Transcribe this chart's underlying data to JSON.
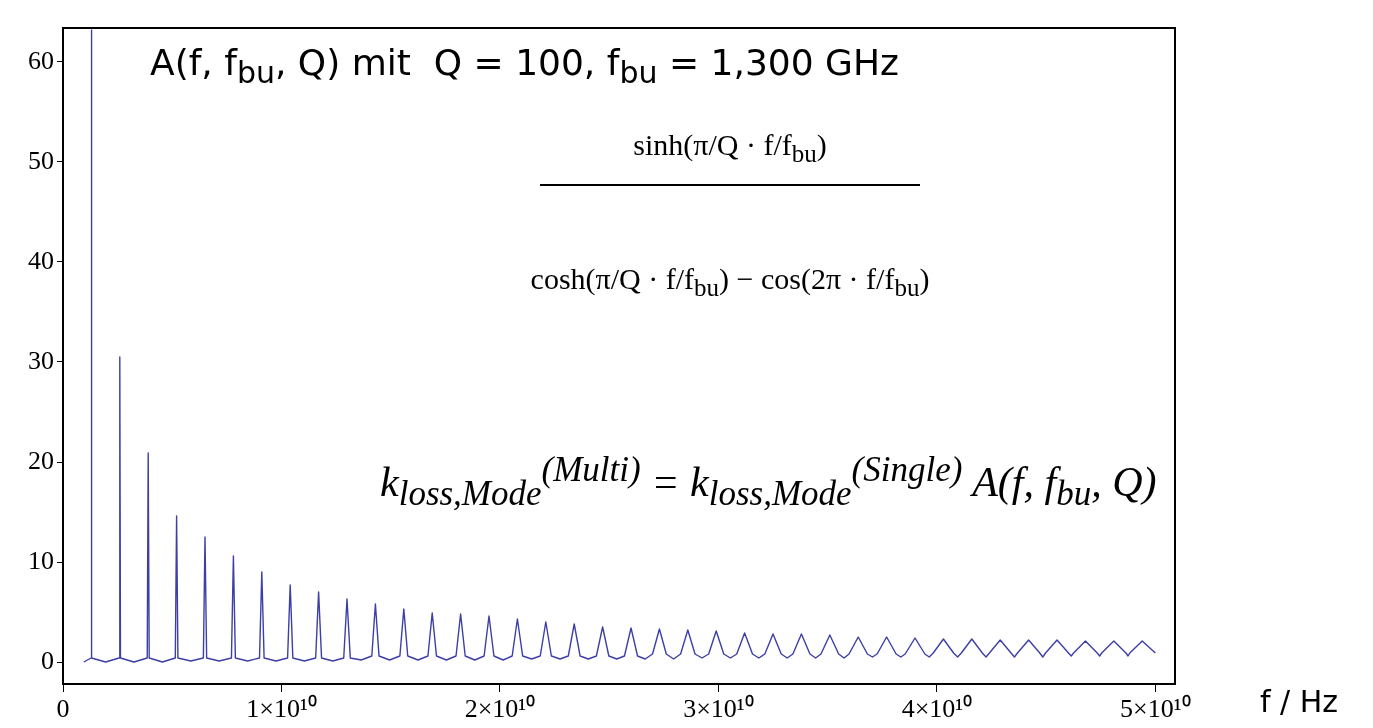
{
  "chart_data": {
    "type": "line",
    "title": "A(f, f$_{bu}$, Q) mit  Q = 100, f$_{bu}$ = 1,300 GHz",
    "xlabel": "f / Hz",
    "annotations": [
      "sinh(π/Q · f/f$_{bu}$)",
      "cosh(π/Q · f/f$_{bu}$) − cos(2π · f/f$_{bu}$)",
      "k$_{loss,Mode}$$^{(Multi)}$ = k$_{loss,Mode}$$^{(Single)}$ A(f, f$_{bu}$, Q)"
    ],
    "xlim": [
      0,
      50900000000.0
    ],
    "ylim": [
      -2.2,
      63.4
    ],
    "xticks": [
      {
        "value": 0,
        "label": "0"
      },
      {
        "value": 10000000000.0,
        "label": "1×10¹⁰"
      },
      {
        "value": 20000000000.0,
        "label": "2×10¹⁰"
      },
      {
        "value": 30000000000.0,
        "label": "3×10¹⁰"
      },
      {
        "value": 40000000000.0,
        "label": "4×10¹⁰"
      },
      {
        "value": 50000000000.0,
        "label": "5×10¹⁰"
      }
    ],
    "yticks": [
      0,
      10,
      20,
      30,
      40,
      50,
      60
    ],
    "grid": false,
    "legend": false,
    "marker": "none",
    "line_style": "solid",
    "series": [
      {
        "color": "#3d3fa6",
        "x": [
          950000000.0,
          1285000000.0,
          1300000000.0,
          1315000000.0,
          1950000000.0,
          2570000000.0,
          2600000000.0,
          2630000000.0,
          3250000000.0,
          3855000000.0,
          3900000000.0,
          3945000000.0,
          4550000000.0,
          5140000000.0,
          5200000000.0,
          5260000000.0,
          5850000000.0,
          6425000000.0,
          6500000000.0,
          6575000000.0,
          7150000000.0,
          7710000000.0,
          7800000000.0,
          7890000000.0,
          8450000000.0,
          8995000000.0,
          9100000000.0,
          9205000000.0,
          9750000000.0,
          10280000000.0,
          10400000000.0,
          10520000000.0,
          11050000000.0,
          11565000000.0,
          11700000000.0,
          11835000000.0,
          12350000000.0,
          12850000000.0,
          13000000000.0,
          13150000000.0,
          13650000000.0,
          14135000000.0,
          14300000000.0,
          14465000000.0,
          14950000000.0,
          15420000000.0,
          15600000000.0,
          15780000000.0,
          16250000000.0,
          16705000000.0,
          16900000000.0,
          17095000000.0,
          17550000000.0,
          17990000000.0,
          18200000000.0,
          18410000000.0,
          18850000000.0,
          19275000000.0,
          19500000000.0,
          19725000000.0,
          20150000000.0,
          20560000000.0,
          20800000000.0,
          21040000000.0,
          21450000000.0,
          21845000000.0,
          22100000000.0,
          22355000000.0,
          22750000000.0,
          23130000000.0,
          23400000000.0,
          23670000000.0,
          24050000000.0,
          24415000000.0,
          24700000000.0,
          24985000000.0,
          25350000000.0,
          25700000000.0,
          26000000000.0,
          26300000000.0,
          26650000000.0,
          26985000000.0,
          27300000000.0,
          27615000000.0,
          27950000000.0,
          28270000000.0,
          28600000000.0,
          28930000000.0,
          29250000000.0,
          29555000000.0,
          29900000000.0,
          30245000000.0,
          30550000000.0,
          30840000000.0,
          31200000000.0,
          31560000000.0,
          31850000000.0,
          32125000000.0,
          32500000000.0,
          32875000000.0,
          33150000000.0,
          33410000000.0,
          33800000000.0,
          34190000000.0,
          34450000000.0,
          34695000000.0,
          35100000000.0,
          35505000000.0,
          35750000000.0,
          35980000000.0,
          36400000000.0,
          36820000000.0,
          37050000000.0,
          37265000000.0,
          37700000000.0,
          38135000000.0,
          38350000000.0,
          38550000000.0,
          39000000000.0,
          39450000000.0,
          39650000000.0,
          39835000000.0,
          40300000000.0,
          40765000000.0,
          40950000000.0,
          41120000000.0,
          41600000000.0,
          42080000000.0,
          42250000000.0,
          42405000000.0,
          42900000000.0,
          43395000000.0,
          43550000000.0,
          43690000000.0,
          44200000000.0,
          44710000000.0,
          44850000000.0,
          44975000000.0,
          45500000000.0,
          46025000000.0,
          46150000000.0,
          46260000000.0,
          46800000000.0,
          47340000000.0,
          47450000000.0,
          47545000000.0,
          48100000000.0,
          48655000000.0,
          48750000000.0,
          48830000000.0,
          49400000000.0,
          50000000000.0
        ],
        "values": [
          0.0,
          0.4,
          63.2,
          0.4,
          0.0,
          0.4,
          30.5,
          0.4,
          0.0,
          0.4,
          20.9,
          0.4,
          0.0,
          0.4,
          14.6,
          0.4,
          0.1,
          0.4,
          12.5,
          0.4,
          0.1,
          0.4,
          10.6,
          0.4,
          0.1,
          0.4,
          9.0,
          0.4,
          0.1,
          0.4,
          7.7,
          0.4,
          0.1,
          0.4,
          7.0,
          0.4,
          0.1,
          0.4,
          6.3,
          0.4,
          0.2,
          0.6,
          5.8,
          0.6,
          0.2,
          0.6,
          5.3,
          0.6,
          0.2,
          0.6,
          4.9,
          0.6,
          0.2,
          0.6,
          4.8,
          0.6,
          0.2,
          0.6,
          4.6,
          0.6,
          0.2,
          0.6,
          4.3,
          0.6,
          0.3,
          0.6,
          4.0,
          0.6,
          0.3,
          0.6,
          3.8,
          0.6,
          0.3,
          0.6,
          3.5,
          0.6,
          0.3,
          0.6,
          3.4,
          0.6,
          0.3,
          0.8,
          3.3,
          0.8,
          0.3,
          0.8,
          3.2,
          0.8,
          0.4,
          0.8,
          3.1,
          0.8,
          0.4,
          0.8,
          2.9,
          0.8,
          0.4,
          0.8,
          2.8,
          0.8,
          0.4,
          0.8,
          2.8,
          0.8,
          0.4,
          0.8,
          2.7,
          0.8,
          0.4,
          0.8,
          2.5,
          0.8,
          0.5,
          0.8,
          2.5,
          0.8,
          0.5,
          0.8,
          2.4,
          0.8,
          0.5,
          0.9,
          2.3,
          0.9,
          0.5,
          0.9,
          2.3,
          0.9,
          0.5,
          0.9,
          2.2,
          0.9,
          0.5,
          0.9,
          2.2,
          0.9,
          0.5,
          0.9,
          2.2,
          0.9,
          0.6,
          0.9,
          2.1,
          0.9,
          0.6,
          0.9,
          2.1,
          0.9,
          0.6,
          0.9,
          2.1,
          0.9
        ]
      }
    ]
  }
}
